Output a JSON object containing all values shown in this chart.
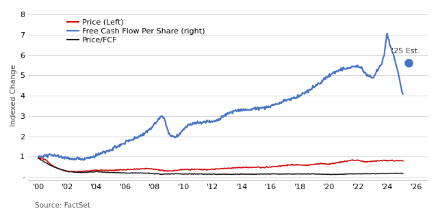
{
  "ylabel": "Indexed Change",
  "source": "Source: FactSet",
  "ylim": [
    -0.15,
    8.2
  ],
  "yticks": [
    0,
    1,
    2,
    3,
    4,
    5,
    6,
    7,
    8
  ],
  "xtick_positions": [
    2000,
    2002,
    2004,
    2006,
    2008,
    2010,
    2012,
    2014,
    2016,
    2018,
    2020,
    2022,
    2024,
    2026
  ],
  "xtick_labels": [
    "'00",
    "'02",
    "'04",
    "'06",
    "'08",
    "'10",
    "'12",
    "'14",
    "'16",
    "'18",
    "'20",
    "'22",
    "'24",
    "'26"
  ],
  "xlim": [
    1999.3,
    2026.8
  ],
  "price_color": "#cc0000",
  "fcf_color": "#4472c4",
  "multiple_color": "#111111",
  "dot_color": "#4472c4",
  "legend_entries": [
    "Price (Left)",
    "Free Cash Flow Per Share (right)",
    "Price/FCF"
  ],
  "est_label": "'25 Est.",
  "est_x": 2025.5,
  "est_y": 5.6,
  "background_color": "#ffffff",
  "grid_color": "#d0d0d0"
}
